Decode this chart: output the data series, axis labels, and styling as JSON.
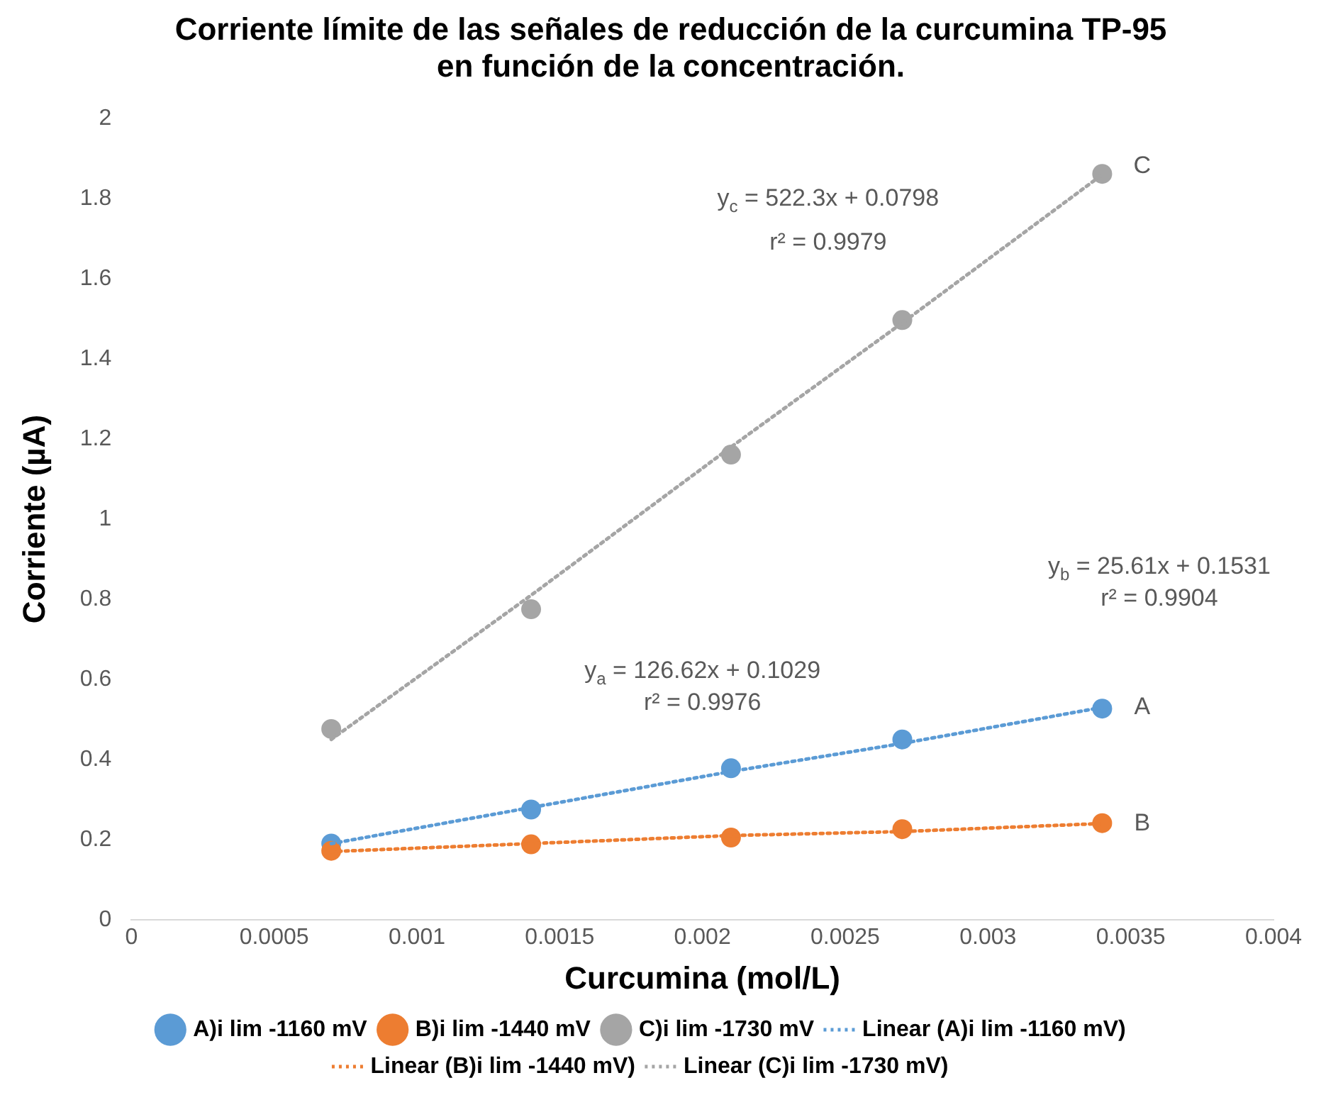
{
  "chart_data": {
    "type": "scatter",
    "title": "Corriente límite de las señales de reducción de la curcumina TP-95 en función de la concentración.",
    "xlabel": "Curcumina (mol/L)",
    "ylabel": "Corriente (µA)",
    "xlim": [
      0,
      0.004
    ],
    "xticks": [
      0,
      0.0005,
      0.001,
      0.0015,
      0.002,
      0.0025,
      0.003,
      0.0035,
      0.004
    ],
    "ylim": [
      0,
      2
    ],
    "yticks": [
      0,
      0.2,
      0.4,
      0.6,
      0.8,
      1,
      1.2,
      1.4,
      1.6,
      1.8,
      2
    ],
    "grid": false,
    "legend": "bottom",
    "marker": "circle",
    "x": [
      0.0007,
      0.0014,
      0.0021,
      0.0027,
      0.0034
    ],
    "series": [
      {
        "name": "A)i lim -1160 mV",
        "color": "#5b9bd5",
        "values": [
          0.19,
          0.275,
          0.378,
          0.45,
          0.527
        ]
      },
      {
        "name": "B)i lim -1440 mV",
        "color": "#ed7d31",
        "values": [
          0.172,
          0.188,
          0.205,
          0.226,
          0.241
        ]
      },
      {
        "name": "C)i lim -1730 mV",
        "color": "#a5a5a5",
        "values": [
          0.476,
          0.775,
          1.161,
          1.497,
          1.862
        ]
      },
      {
        "name": "Linear (A)i lim -1160 mV)",
        "type": "line",
        "color": "#5b9bd5",
        "values": [
          0.19,
          0.28,
          0.37,
          0.44,
          0.53
        ],
        "line_style": "dotted",
        "marker": "none"
      },
      {
        "name": "Linear (B)i lim -1440 mV)",
        "type": "line",
        "color": "#ed7d31",
        "values": [
          0.17,
          0.19,
          0.21,
          0.22,
          0.24
        ],
        "line_style": "dotted",
        "marker": "none"
      },
      {
        "name": "Linear (C)i lim -1730 mV)",
        "type": "line",
        "color": "#a5a5a5",
        "values": [
          0.45,
          0.81,
          1.18,
          1.49,
          1.86
        ],
        "line_style": "dotted",
        "marker": "none"
      }
    ],
    "annotations": [
      "y$_{c}$ = 522.3x + 0.0798",
      "r² = 0.9979",
      "y$_{a}$ = 126.62x + 0.1029",
      "r² = 0.9976",
      "y$_{b}$ = 25.61x + 0.1531",
      "r² = 0.9904",
      "A",
      "B",
      "C"
    ]
  }
}
